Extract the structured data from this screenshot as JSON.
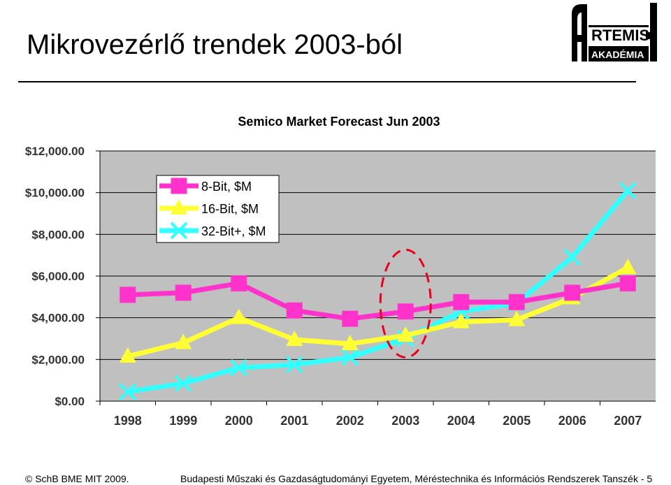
{
  "slide": {
    "title": "Mikrovezérlő trendek 2003-ból",
    "logo_main": "RTEMIS",
    "logo_sub": "AKADÉMIA",
    "footer_left": "© SchB BME MIT  2009.",
    "footer_right": "Budapesti Műszaki és Gazdaságtudományi Egyetem, Méréstechnika és Információs Rendszerek Tanszék - 5"
  },
  "colors": {
    "series_8bit": "#ff33cc",
    "series_16bit": "#ffff33",
    "series_32bit": "#33ffff",
    "plot_bg": "#c0c0c0",
    "highlight_ellipse": "#e8001c"
  },
  "chart_data": {
    "type": "line",
    "title": "Semico Market Forecast Jun 2003",
    "xlabel": "",
    "ylabel": "",
    "categories": [
      "1998",
      "1999",
      "2000",
      "2001",
      "2002",
      "2003",
      "2004",
      "2005",
      "2006",
      "2007"
    ],
    "yticks": [
      "$0.00",
      "$2,000.00",
      "$4,000.00",
      "$6,000.00",
      "$8,000.00",
      "$10,000.00",
      "$12,000.00"
    ],
    "ylim": [
      0,
      12000
    ],
    "grid": true,
    "legend_position": "top-left",
    "highlight_category": "2003",
    "series": [
      {
        "name": "8-Bit, $M",
        "marker": "square",
        "values": [
          5100,
          5200,
          5650,
          4350,
          3950,
          4300,
          4750,
          4750,
          5200,
          5650
        ]
      },
      {
        "name": "16-Bit, $M",
        "marker": "triangle",
        "values": [
          2150,
          2800,
          4000,
          2950,
          2750,
          3150,
          3800,
          3900,
          4950,
          6400
        ]
      },
      {
        "name": "32-Bit+, $M",
        "marker": "x",
        "values": [
          450,
          850,
          1600,
          1750,
          2100,
          3000,
          4300,
          4700,
          6900,
          10100
        ]
      }
    ]
  }
}
